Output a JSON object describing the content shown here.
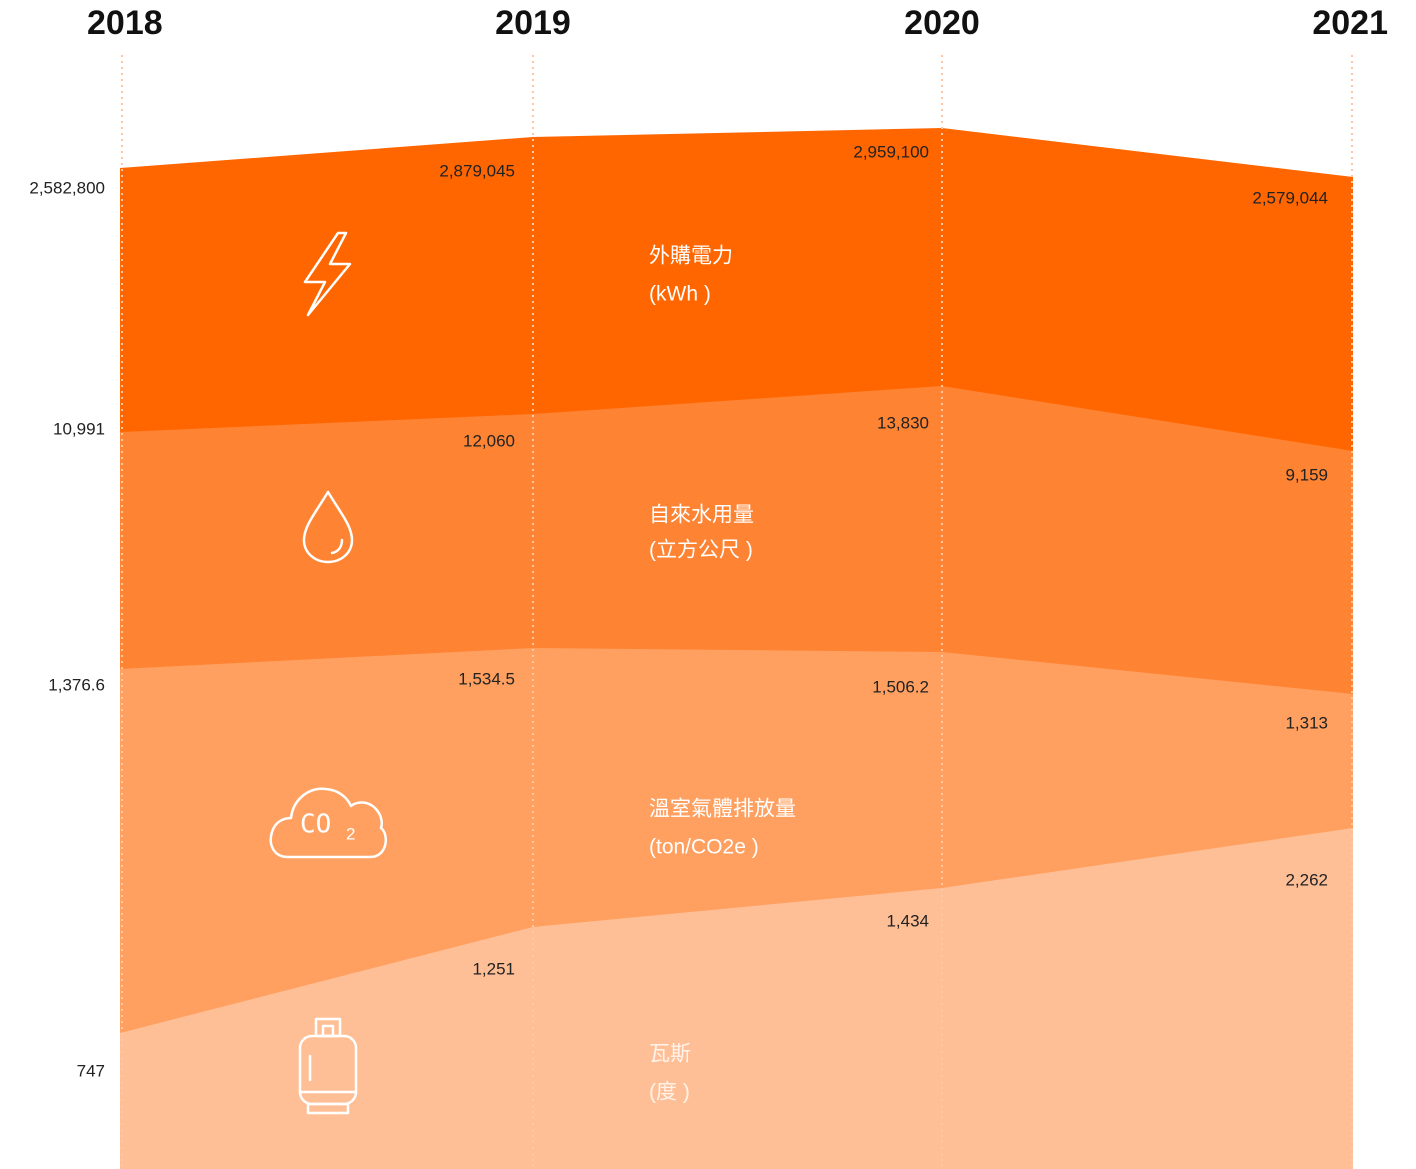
{
  "years": [
    "2018",
    "2019",
    "2020",
    "2021"
  ],
  "metrics": [
    {
      "label": "外購電力",
      "unit": "(kWh )",
      "values": [
        "2,582,800",
        "2,879,045",
        "2,959,100",
        "2,579,044"
      ]
    },
    {
      "label": "自來水用量",
      "unit": "(立方公尺 )",
      "values": [
        "10,991",
        "12,060",
        "13,830",
        "9,159"
      ]
    },
    {
      "label": "溫室氣體排放量",
      "unit": "(ton/CO2e )",
      "values": [
        "1,376.6",
        "1,534.5",
        "1,506.2",
        "1,313"
      ]
    },
    {
      "label": "瓦斯",
      "unit": "(度 )",
      "values": [
        "747",
        "1,251",
        "1,434",
        "2,262"
      ]
    }
  ]
}
